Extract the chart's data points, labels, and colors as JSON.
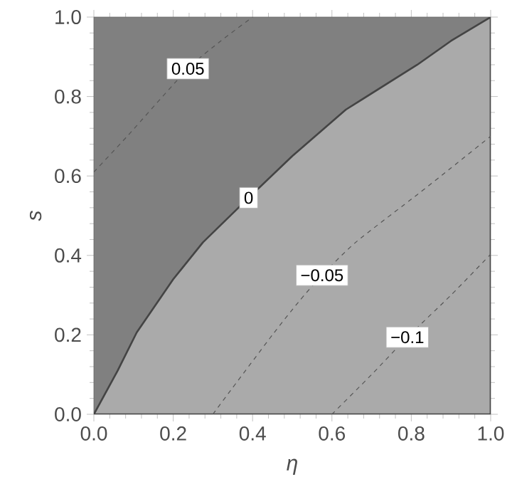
{
  "chart_data": {
    "type": "line",
    "xlabel": "η",
    "ylabel": "s",
    "xlim": [
      0,
      1
    ],
    "ylim": [
      0,
      1
    ],
    "xticks": [
      {
        "value": 0,
        "label": "0.0"
      },
      0.2,
      0.4,
      0.6,
      0.8,
      {
        "value": 1,
        "label": "1.0"
      }
    ],
    "yticks": [
      {
        "value": 0,
        "label": "0.0"
      },
      0.2,
      0.4,
      0.6,
      0.8,
      {
        "value": 1,
        "label": "1.0"
      }
    ],
    "grid": false,
    "marker": "none",
    "series": [
      {
        "name": "0.05",
        "color": "#555555",
        "line_style": "dashed",
        "x": [
          0,
          0.084,
          0.237,
          0.32,
          0.4
        ],
        "values": [
          0.61,
          0.7,
          0.87,
          0.94,
          1.0
        ]
      },
      {
        "name": "0",
        "type": "area",
        "color": "#aaaaaa",
        "line_style": "solid",
        "x": [
          0,
          0.06,
          0.108,
          0.2,
          0.275,
          0.39,
          0.5,
          0.635,
          0.815,
          0.9,
          1
        ],
        "values": [
          0,
          0.11,
          0.206,
          0.34,
          0.433,
          0.545,
          0.65,
          0.767,
          0.88,
          0.94,
          1
        ]
      },
      {
        "name": "−0.05",
        "color": "#555555",
        "line_style": "dashed",
        "x": [
          0.3,
          0.337,
          0.45,
          0.516,
          0.575,
          0.66,
          0.815,
          0.9,
          1
        ],
        "values": [
          0,
          0.05,
          0.2,
          0.283,
          0.35,
          0.433,
          0.553,
          0.62,
          0.7
        ]
      },
      {
        "name": "−0.1",
        "color": "#555555",
        "line_style": "dashed",
        "x": [
          0.6,
          0.7,
          0.79,
          0.9,
          1
        ],
        "values": [
          0,
          0.1,
          0.194,
          0.3,
          0.403
        ]
      }
    ]
  }
}
